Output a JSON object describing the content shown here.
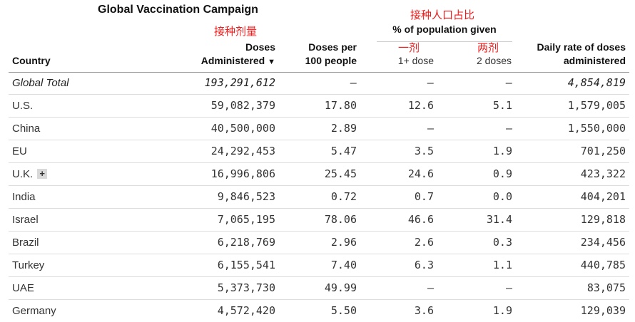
{
  "title": "Global Vaccination Campaign",
  "annotations": {
    "doses": "接种剂量",
    "pct_population": "接种人口占比",
    "one_dose": "一剂",
    "two_doses": "两剂"
  },
  "headers": {
    "country": "Country",
    "doses_line1": "Doses",
    "doses_line2": "Administered",
    "sort_icon": "▼",
    "per100_line1": "Doses per",
    "per100_line2": "100 people",
    "pct_title": "% of population given",
    "one_dose": "1+ dose",
    "two_doses": "2 doses",
    "daily_line1": "Daily rate of doses",
    "daily_line2": "administered"
  },
  "expand_label": "+",
  "rows": [
    {
      "country": "Global Total",
      "doses": "193,291,612",
      "per100": "–",
      "one_dose": "–",
      "two_doses": "–",
      "daily": "4,854,819"
    },
    {
      "country": "U.S.",
      "doses": "59,082,379",
      "per100": "17.80",
      "one_dose": "12.6",
      "two_doses": "5.1",
      "daily": "1,579,005"
    },
    {
      "country": "China",
      "doses": "40,500,000",
      "per100": "2.89",
      "one_dose": "–",
      "two_doses": "–",
      "daily": "1,550,000"
    },
    {
      "country": "EU",
      "doses": "24,292,453",
      "per100": "5.47",
      "one_dose": "3.5",
      "two_doses": "1.9",
      "daily": "701,250"
    },
    {
      "country": "U.K.",
      "doses": "16,996,806",
      "per100": "25.45",
      "one_dose": "24.6",
      "two_doses": "0.9",
      "daily": "423,322"
    },
    {
      "country": "India",
      "doses": "9,846,523",
      "per100": "0.72",
      "one_dose": "0.7",
      "two_doses": "0.0",
      "daily": "404,201"
    },
    {
      "country": "Israel",
      "doses": "7,065,195",
      "per100": "78.06",
      "one_dose": "46.6",
      "two_doses": "31.4",
      "daily": "129,818"
    },
    {
      "country": "Brazil",
      "doses": "6,218,769",
      "per100": "2.96",
      "one_dose": "2.6",
      "two_doses": "0.3",
      "daily": "234,456"
    },
    {
      "country": "Turkey",
      "doses": "6,155,541",
      "per100": "7.40",
      "one_dose": "6.3",
      "two_doses": "1.1",
      "daily": "440,785"
    },
    {
      "country": "UAE",
      "doses": "5,373,730",
      "per100": "49.99",
      "one_dose": "–",
      "two_doses": "–",
      "daily": "83,075"
    },
    {
      "country": "Germany",
      "doses": "4,572,420",
      "per100": "5.50",
      "one_dose": "3.6",
      "two_doses": "1.9",
      "daily": "129,039"
    }
  ]
}
